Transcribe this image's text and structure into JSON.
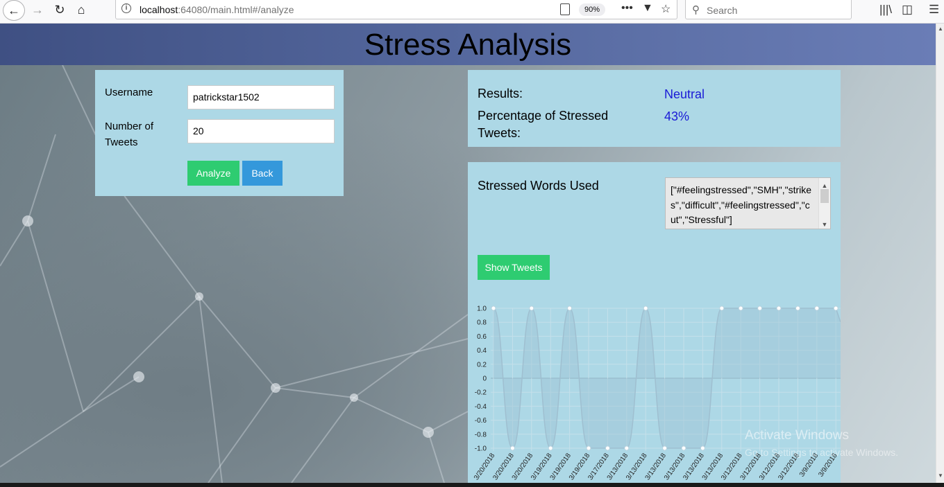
{
  "browser": {
    "url_host": "localhost",
    "url_rest": ":64080/main.html#/analyze",
    "zoom": "90%",
    "search_placeholder": "Search"
  },
  "page": {
    "title": "Stress Analysis"
  },
  "form": {
    "username_label": "Username",
    "username_value": "patrickstar1502",
    "tweets_label": "Number of Tweets",
    "tweets_value": "20",
    "analyze_label": "Analyze",
    "back_label": "Back"
  },
  "results": {
    "results_label": "Results:",
    "results_value": "Neutral",
    "percent_label": "Percentage of Stressed Tweets:",
    "percent_value": "43%"
  },
  "words": {
    "label": "Stressed Words Used",
    "value": "[\"#feelingstressed\",\"SMH\",\"strikes\",\"difficult\",\"#feelingstressed\",\"cut\",\"Stressful\"]",
    "show_tweets_label": "Show Tweets"
  },
  "watermark": {
    "line1": "Activate Windows",
    "line2": "Go to Settings to activate Windows."
  },
  "chart_data": {
    "type": "line",
    "categories": [
      "3/20/2018",
      "3/20/2018",
      "3/20/2018",
      "3/19/2018",
      "3/19/2018",
      "3/19/2018",
      "3/17/2018",
      "3/13/2018",
      "3/13/2018",
      "3/13/2018",
      "3/13/2018",
      "3/13/2018",
      "3/13/2018",
      "3/12/2018",
      "3/12/2018",
      "3/12/2018",
      "3/12/2018",
      "3/9/2018",
      "3/9/2018"
    ],
    "values": [
      1,
      -1,
      1,
      -1,
      1,
      -1,
      -1,
      -1,
      1,
      -1,
      -1,
      -1,
      1,
      1,
      1,
      1,
      1,
      1,
      1
    ],
    "y_ticks": [
      "1.0",
      "0.8",
      "0.6",
      "0.4",
      "0.2",
      "0",
      "-0.2",
      "-0.4",
      "-0.6",
      "-0.8",
      "-1.0"
    ],
    "ylim": [
      -1,
      1
    ],
    "grid": true,
    "line_color": "#9fbfd0",
    "fill_color": "#9ec3d4"
  }
}
